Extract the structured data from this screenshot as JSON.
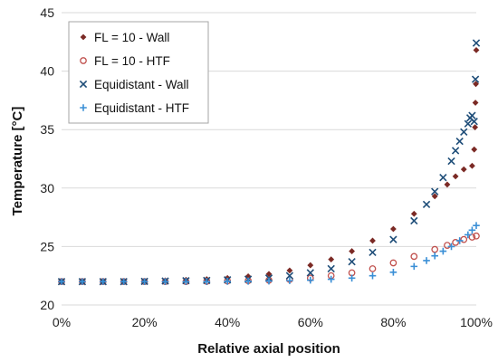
{
  "chart_data": {
    "type": "scatter",
    "xlabel": "Relative axial position",
    "ylabel": "Temperature [°C]",
    "xlim": [
      0,
      1
    ],
    "ylim": [
      20,
      45
    ],
    "x_ticks": [
      0,
      0.2,
      0.4,
      0.6,
      0.8,
      1.0
    ],
    "x_tick_labels": [
      "0%",
      "20%",
      "40%",
      "60%",
      "80%",
      "100%"
    ],
    "y_ticks": [
      20,
      25,
      30,
      35,
      40,
      45
    ],
    "y_tick_labels": [
      "20",
      "25",
      "30",
      "35",
      "40",
      "45"
    ],
    "grid": "horizontal",
    "legend_position": "top-left",
    "series": [
      {
        "name": "FL = 10 - Wall",
        "marker": "diamond",
        "color": "#7b2a25",
        "x": [
          0.0,
          0.05,
          0.1,
          0.15,
          0.2,
          0.25,
          0.3,
          0.35,
          0.4,
          0.45,
          0.5,
          0.55,
          0.6,
          0.65,
          0.7,
          0.75,
          0.8,
          0.85,
          0.9,
          0.93,
          0.95,
          0.97,
          0.99,
          0.995,
          0.997,
          0.998,
          0.999,
          1.0
        ],
        "y": [
          22.0,
          22.0,
          22.0,
          22.02,
          22.05,
          22.1,
          22.15,
          22.2,
          22.3,
          22.45,
          22.65,
          22.95,
          23.4,
          23.9,
          24.6,
          25.5,
          26.5,
          27.8,
          29.3,
          30.3,
          31.0,
          31.6,
          31.9,
          33.3,
          35.2,
          37.3,
          38.9,
          41.8
        ]
      },
      {
        "name": "FL = 10 - HTF",
        "marker": "circle",
        "color": "#c0504d",
        "x": [
          0.0,
          0.05,
          0.1,
          0.15,
          0.2,
          0.25,
          0.3,
          0.35,
          0.4,
          0.45,
          0.5,
          0.55,
          0.6,
          0.65,
          0.7,
          0.75,
          0.8,
          0.85,
          0.9,
          0.93,
          0.95,
          0.97,
          0.99,
          1.0
        ],
        "y": [
          22.0,
          22.0,
          22.0,
          22.0,
          22.0,
          22.0,
          22.0,
          22.02,
          22.05,
          22.08,
          22.12,
          22.18,
          22.3,
          22.5,
          22.75,
          23.1,
          23.6,
          24.15,
          24.75,
          25.1,
          25.35,
          25.6,
          25.8,
          25.9
        ]
      },
      {
        "name": "Equidistant - Wall",
        "marker": "x",
        "color": "#1f4e79",
        "x": [
          0.0,
          0.05,
          0.1,
          0.15,
          0.2,
          0.25,
          0.3,
          0.35,
          0.4,
          0.45,
          0.5,
          0.55,
          0.6,
          0.65,
          0.7,
          0.75,
          0.8,
          0.85,
          0.88,
          0.9,
          0.92,
          0.94,
          0.95,
          0.96,
          0.97,
          0.98,
          0.985,
          0.99,
          0.995,
          0.998,
          1.0
        ],
        "y": [
          22.0,
          22.0,
          22.0,
          22.0,
          22.02,
          22.05,
          22.08,
          22.1,
          22.15,
          22.2,
          22.3,
          22.5,
          22.75,
          23.1,
          23.7,
          24.5,
          25.6,
          27.2,
          28.6,
          29.7,
          30.9,
          32.3,
          33.2,
          34.0,
          34.8,
          35.5,
          36.0,
          36.2,
          35.7,
          39.3,
          42.4
        ]
      },
      {
        "name": "Equidistant - HTF",
        "marker": "plus",
        "color": "#3a8fd6",
        "x": [
          0.0,
          0.05,
          0.1,
          0.15,
          0.2,
          0.25,
          0.3,
          0.35,
          0.4,
          0.45,
          0.5,
          0.55,
          0.6,
          0.65,
          0.7,
          0.75,
          0.8,
          0.85,
          0.88,
          0.9,
          0.92,
          0.94,
          0.96,
          0.98,
          0.99,
          1.0
        ],
        "y": [
          22.0,
          22.0,
          22.0,
          22.0,
          22.0,
          22.0,
          22.0,
          22.0,
          22.02,
          22.03,
          22.05,
          22.08,
          22.12,
          22.2,
          22.3,
          22.5,
          22.8,
          23.3,
          23.8,
          24.2,
          24.6,
          25.0,
          25.5,
          26.0,
          26.4,
          26.8
        ]
      }
    ]
  }
}
